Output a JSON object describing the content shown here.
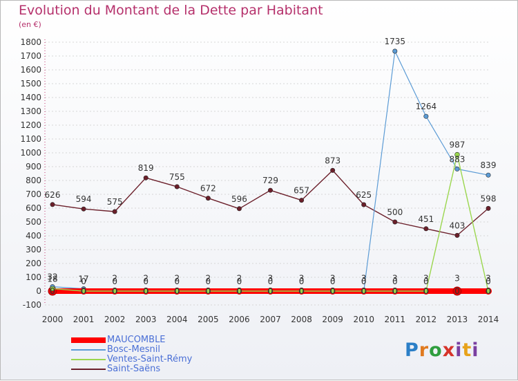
{
  "header": {
    "title": "Evolution du Montant de la Dette par Habitant",
    "subtitle": "(en €)"
  },
  "logo": {
    "text": "Proxiti"
  },
  "chart_data": {
    "type": "line",
    "x": [
      "2000",
      "2001",
      "2002",
      "2003",
      "2004",
      "2005",
      "2006",
      "2007",
      "2008",
      "2009",
      "2010",
      "2011",
      "2012",
      "2013",
      "2014"
    ],
    "ylim": [
      -100,
      1800
    ],
    "yticks": [
      -100,
      0,
      100,
      200,
      300,
      400,
      500,
      600,
      700,
      800,
      900,
      1000,
      1100,
      1200,
      1300,
      1400,
      1500,
      1600,
      1700,
      1800
    ],
    "legend_position": "bottom-left",
    "series": [
      {
        "name": "MAUCOMBLE",
        "color": "#ff0000",
        "values": [
          0,
          0,
          0,
          0,
          0,
          0,
          0,
          0,
          0,
          0,
          0,
          0,
          0,
          0,
          0
        ],
        "labels": [
          "0",
          "0",
          "0",
          "0",
          "0",
          "0",
          "0",
          "0",
          "0",
          "0",
          "0",
          "0",
          "0",
          "0",
          "0"
        ]
      },
      {
        "name": "Bosc-Mesnil",
        "color": "#5b9bd5",
        "values": [
          32,
          17,
          null,
          null,
          null,
          null,
          null,
          null,
          null,
          null,
          0,
          1735,
          1264,
          883,
          839
        ],
        "labels": [
          "32",
          "17",
          "",
          "",
          "",
          "",
          "",
          "",
          "",
          "",
          "",
          "1735",
          "1264",
          "883",
          "839"
        ]
      },
      {
        "name": "Ventes-Saint-Rémy",
        "color": "#9ad64d",
        "values": [
          18,
          0,
          0,
          0,
          0,
          0,
          0,
          0,
          0,
          0,
          0,
          0,
          0,
          987,
          0
        ],
        "labels": [
          "18",
          "0",
          "0",
          "0",
          "0",
          "0",
          "0",
          "0",
          "0",
          "0",
          "0",
          "0",
          "0",
          "987",
          "0"
        ]
      },
      {
        "name": "Saint-Saëns",
        "color": "#6b1f2a",
        "values": [
          626,
          594,
          575,
          819,
          755,
          672,
          596,
          729,
          657,
          873,
          625,
          500,
          451,
          403,
          598
        ],
        "labels": [
          "626",
          "594",
          "575",
          "819",
          "755",
          "672",
          "596",
          "729",
          "657",
          "873",
          "625",
          "500",
          "451",
          "403",
          "598"
        ]
      },
      {
        "name": "",
        "color": "#ff0000",
        "values": [
          null,
          null,
          2,
          2,
          2,
          2,
          2,
          3,
          3,
          3,
          3,
          3,
          3,
          3,
          3
        ],
        "labels": [
          "",
          "",
          "2",
          "2",
          "2",
          "2",
          "2",
          "3",
          "3",
          "3",
          "3",
          "3",
          "3",
          "3",
          "3"
        ]
      }
    ]
  }
}
